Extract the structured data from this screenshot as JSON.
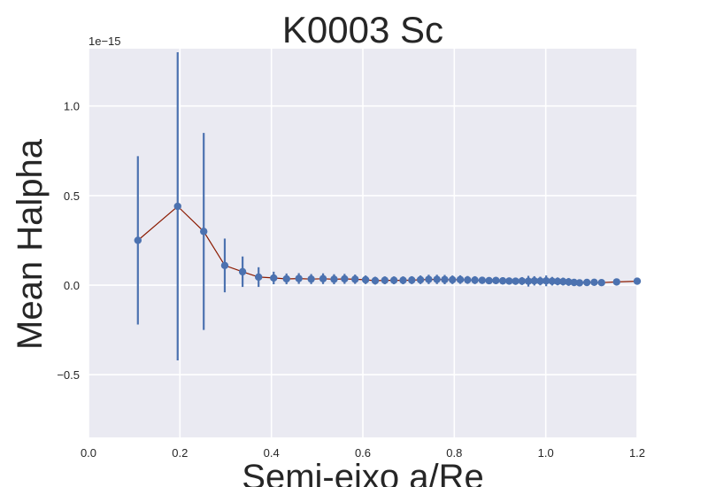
{
  "chart_data": {
    "type": "line",
    "title": "K0003 Sc",
    "xlabel": "Semi-eixo a/Re",
    "ylabel": "Mean Halpha",
    "y_offset_label": "1e−15",
    "xlim": [
      0.0,
      1.2
    ],
    "ylim": [
      -0.85,
      1.32
    ],
    "x_ticks": [
      0.0,
      0.2,
      0.4,
      0.6,
      0.8,
      1.0,
      1.2
    ],
    "x_tick_labels": [
      "0.0",
      "0.2",
      "0.4",
      "0.6",
      "0.8",
      "1.0",
      "1.2"
    ],
    "y_ticks": [
      -0.5,
      0.0,
      0.5,
      1.0
    ],
    "y_tick_labels": [
      "−0.5",
      "0.0",
      "0.5",
      "1.0"
    ],
    "grid": true,
    "colors": {
      "background": "#eaeaf2",
      "grid": "#ffffff",
      "points": "#4c72b0",
      "line": "#8b1a00"
    },
    "series": [
      {
        "x": [
          0.108,
          0.195,
          0.252,
          0.298,
          0.337,
          0.372,
          0.405,
          0.433,
          0.46,
          0.487,
          0.513,
          0.537,
          0.56,
          0.583,
          0.606,
          0.627,
          0.648,
          0.668,
          0.688,
          0.707,
          0.726,
          0.744,
          0.762,
          0.779,
          0.796,
          0.813,
          0.829,
          0.845,
          0.861,
          0.876,
          0.891,
          0.906,
          0.92,
          0.934,
          0.948,
          0.962,
          0.975,
          0.988,
          1.001,
          1.014,
          1.026,
          1.038,
          1.05,
          1.062,
          1.074,
          1.09,
          1.106,
          1.122,
          1.155,
          1.2
        ],
        "y": [
          0.25,
          0.44,
          0.3,
          0.11,
          0.075,
          0.045,
          0.04,
          0.035,
          0.037,
          0.034,
          0.036,
          0.033,
          0.035,
          0.033,
          0.03,
          0.025,
          0.027,
          0.027,
          0.027,
          0.028,
          0.03,
          0.032,
          0.032,
          0.031,
          0.03,
          0.031,
          0.029,
          0.028,
          0.027,
          0.025,
          0.026,
          0.024,
          0.023,
          0.022,
          0.023,
          0.022,
          0.024,
          0.023,
          0.024,
          0.022,
          0.021,
          0.02,
          0.018,
          0.015,
          0.013,
          0.015,
          0.016,
          0.014,
          0.018,
          0.022
        ],
        "yerr": [
          0.47,
          0.86,
          0.55,
          0.15,
          0.085,
          0.055,
          0.035,
          0.03,
          0.03,
          0.028,
          0.03,
          0.028,
          0.028,
          0.026,
          0.024,
          0.022,
          0.022,
          0.022,
          0.022,
          0.022,
          0.024,
          0.026,
          0.026,
          0.026,
          0.024,
          0.024,
          0.022,
          0.022,
          0.02,
          0.02,
          0.02,
          0.02,
          0.02,
          0.02,
          0.022,
          0.03,
          0.026,
          0.024,
          0.03,
          0.024,
          0.022,
          0.022,
          0.022,
          0.02,
          0.018,
          0.016,
          0.014,
          0.012,
          0.012,
          0.01
        ]
      }
    ]
  }
}
